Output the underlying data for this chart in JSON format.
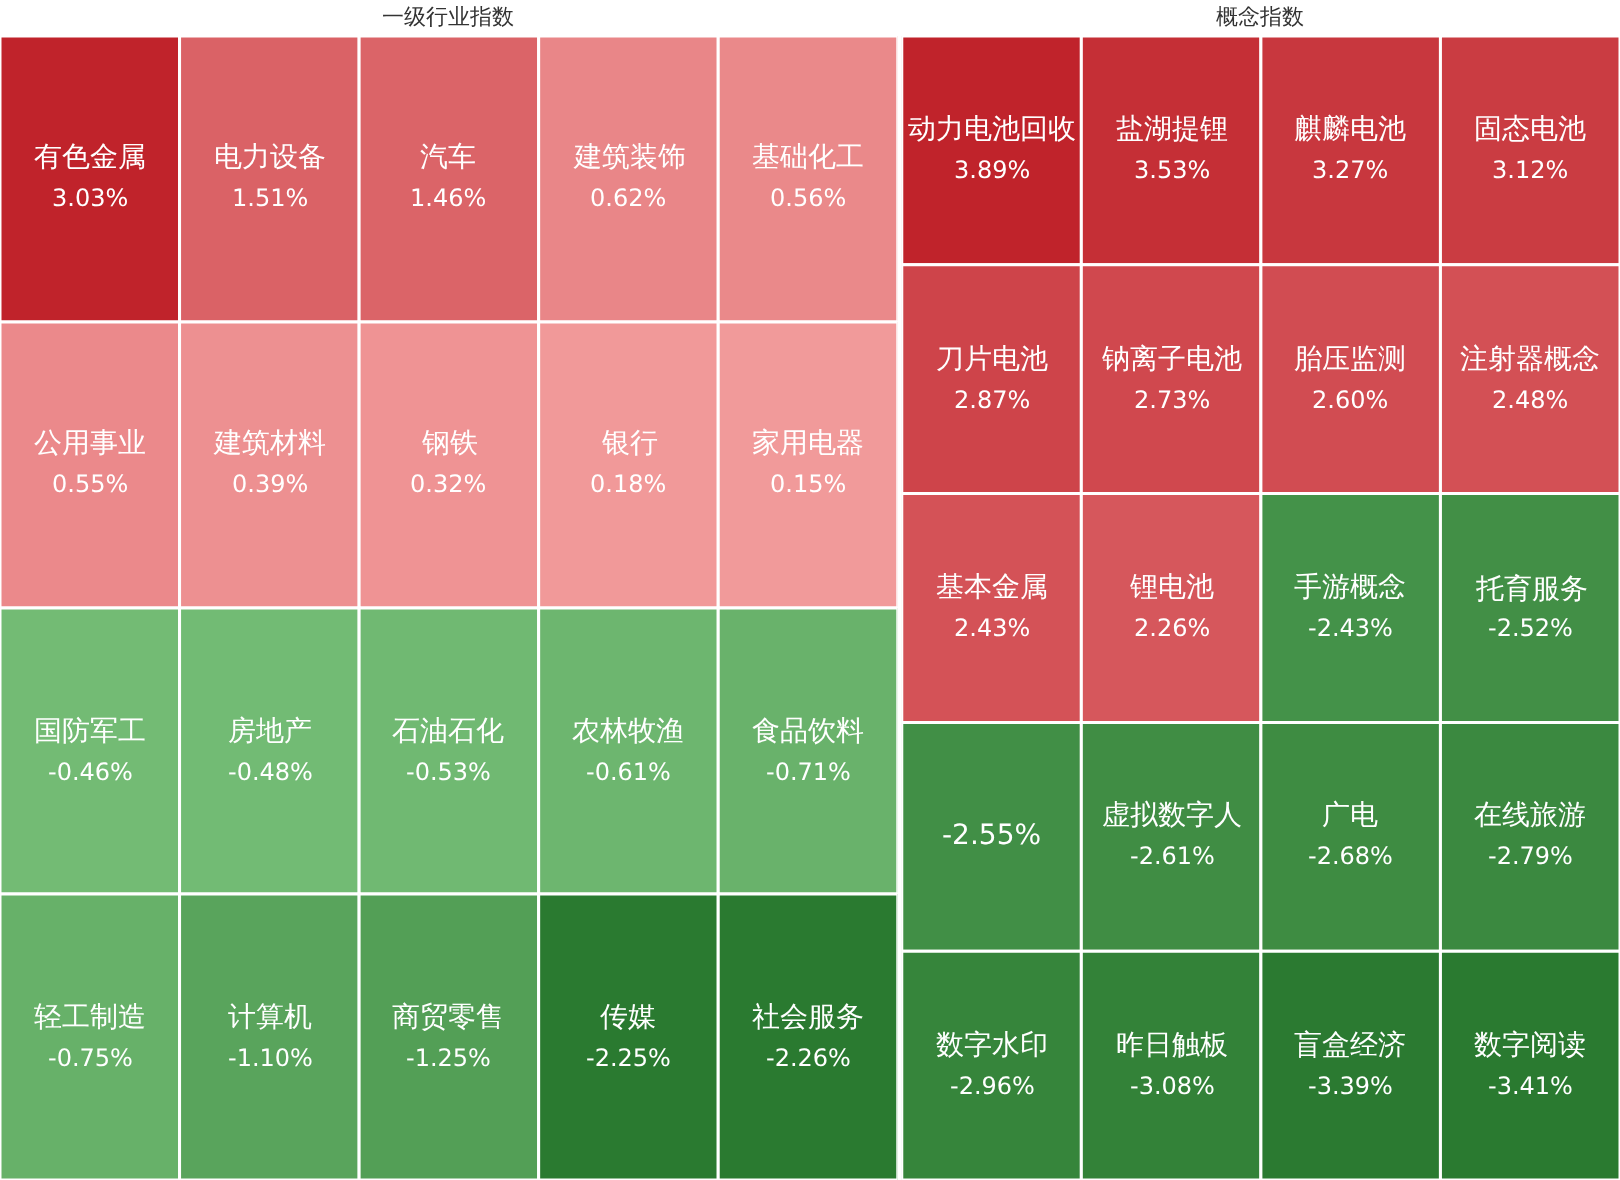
{
  "chart_data": [
    {
      "type": "other",
      "title": "一级行业指数",
      "categories": [
        "有色金属",
        "电力设备",
        "汽车",
        "建筑装饰",
        "基础化工",
        "公用事业",
        "建筑材料",
        "钢铁",
        "银行",
        "家用电器",
        "国防军工",
        "房地产",
        "石油石化",
        "农林牧渔",
        "食品饮料",
        "轻工制造",
        "计算机",
        "商贸零售",
        "传媒",
        "社会服务"
      ],
      "values": [
        3.03,
        1.51,
        1.46,
        0.62,
        0.56,
        0.55,
        0.39,
        0.32,
        0.18,
        0.15,
        -0.46,
        -0.48,
        -0.53,
        -0.61,
        -0.71,
        -0.75,
        -1.1,
        -1.25,
        -2.25,
        -2.26
      ],
      "value_labels": [
        "3.03%",
        "1.51%",
        "1.46%",
        "0.62%",
        "0.56%",
        "0.55%",
        "0.39%",
        "0.32%",
        "0.18%",
        "0.15%",
        "-0.46%",
        "-0.48%",
        "-0.53%",
        "-0.61%",
        "-0.71%",
        "-0.75%",
        "-1.10%",
        "-1.25%",
        "-2.25%",
        "-2.26%"
      ]
    },
    {
      "type": "other",
      "title": "概念指数",
      "categories": [
        "动力电池回收",
        "盐湖提锂",
        "麒麟电池",
        "固态电池",
        "刀片电池",
        "钠离子电池",
        "胎压监测",
        "注射器概念",
        "基本金属",
        "锂电池",
        "手游概念",
        "托育服务",
        null,
        "虚拟数字人",
        "广电",
        "在线旅游",
        "数字水印",
        "昨日触板",
        "盲盒经济",
        "数字阅读"
      ],
      "values": [
        3.89,
        3.53,
        3.27,
        3.12,
        2.87,
        2.73,
        2.6,
        2.48,
        2.43,
        2.26,
        -2.43,
        -2.52,
        -2.55,
        -2.61,
        -2.68,
        -2.79,
        -2.96,
        -3.08,
        -3.39,
        -3.41
      ],
      "value_labels": [
        "3.89%",
        "3.53%",
        "3.27%",
        "3.12%",
        "2.87%",
        "2.73%",
        "2.60%",
        "2.48%",
        "2.43%",
        "2.26%",
        "-2.43%",
        "-2.52%",
        "-2.55%",
        "-2.61%",
        "-2.68%",
        "-2.79%",
        "-2.96%",
        "-3.08%",
        "-3.39%",
        "-3.41%"
      ]
    }
  ]
}
